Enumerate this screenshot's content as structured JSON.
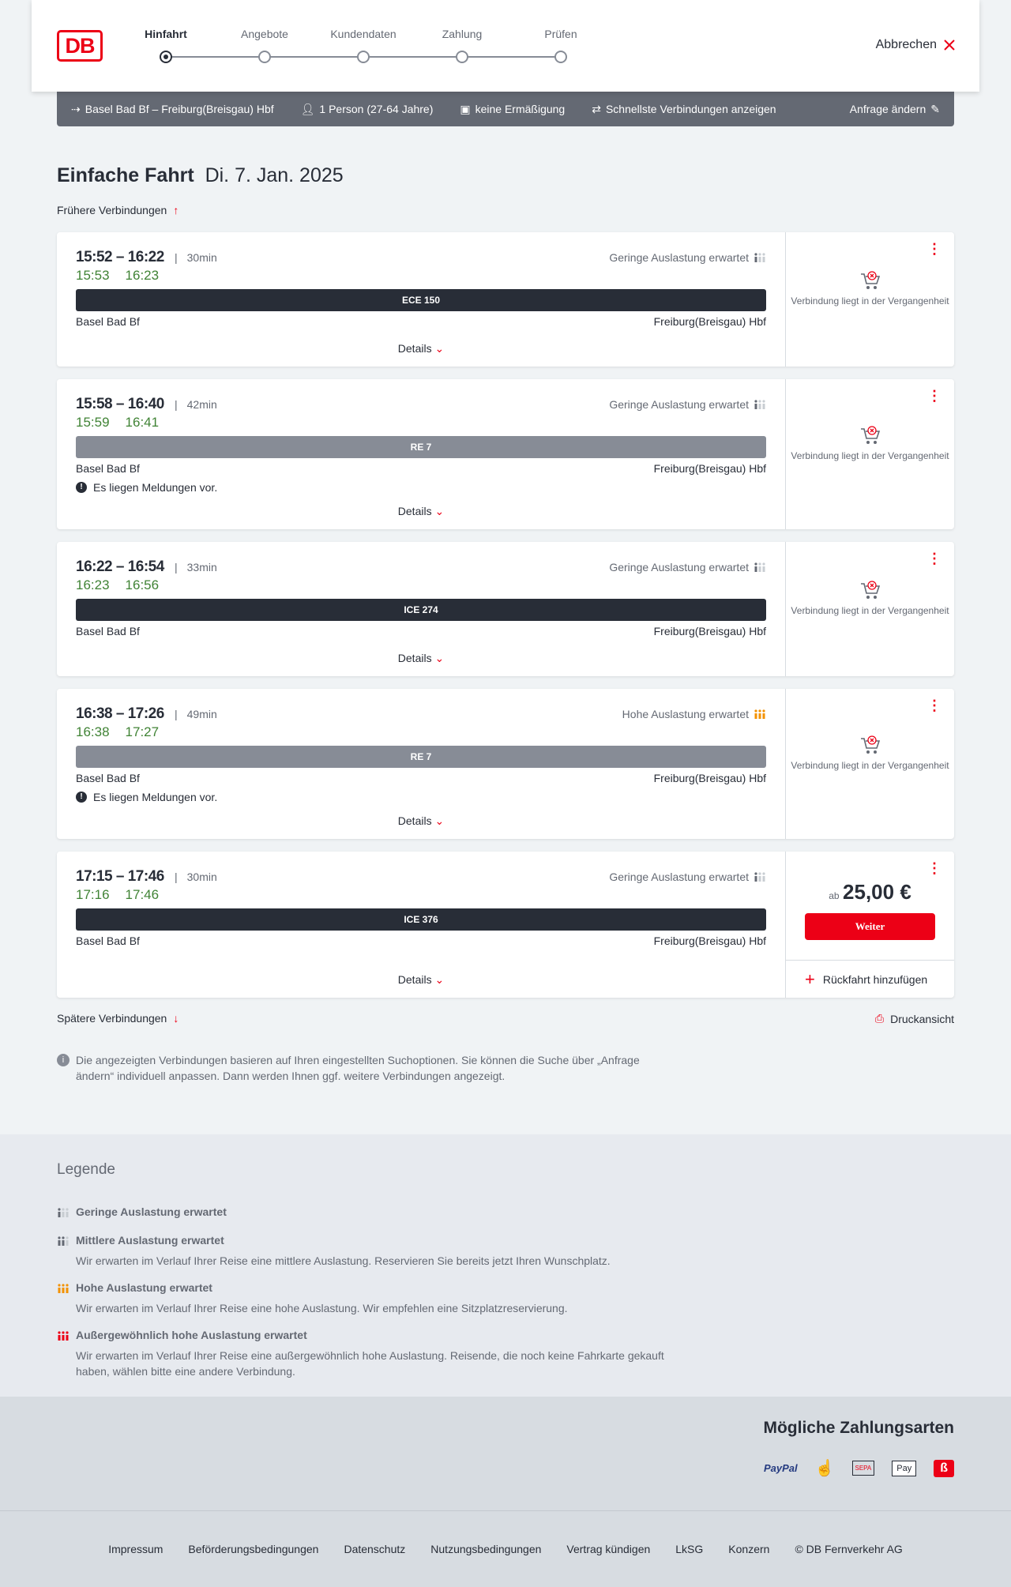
{
  "header": {
    "logo": "DB",
    "steps": [
      "Hinfahrt",
      "Angebote",
      "Kundendaten",
      "Zahlung",
      "Prüfen"
    ],
    "active_step": 0,
    "cancel_label": "Abbrechen"
  },
  "summary": {
    "route": "Basel Bad Bf – Freiburg(Breisgau) Hbf",
    "passengers": "1 Person (27-64 Jahre)",
    "discount": "keine Ermäßigung",
    "option": "Schnellste Verbindungen anzeigen",
    "change": "Anfrage ändern"
  },
  "page": {
    "title": "Einfache Fahrt",
    "date": "Di. 7. Jan. 2025",
    "earlier": "Frühere Verbindungen",
    "later": "Spätere Verbindungen",
    "print": "Druckansicht",
    "info": "Die angezeigten Verbindungen basieren auf Ihren eingestellten Suchoptionen. Sie können die Suche über „Anfrage ändern“ individuell anpassen. Dann werden Ihnen ggf. weitere Verbindungen angezeigt."
  },
  "colors": {
    "accent": "#ec0016",
    "realtime": "#408335",
    "ice": "#282d37",
    "regional": "#878c96",
    "high_load": "#f39200"
  },
  "connections": [
    {
      "times": "15:52 – 16:22",
      "duration": "30min",
      "rt_dep": "15:53",
      "rt_arr": "16:23",
      "load": "Geringe Auslastung erwartet",
      "load_level": "low",
      "train": "ECE 150",
      "train_type": "long",
      "from": "Basel Bad Bf",
      "to": "Freiburg(Breisgau) Hbf",
      "message": "",
      "details": "Details",
      "status": "Verbindung liegt in der Vergangenheit"
    },
    {
      "times": "15:58 – 16:40",
      "duration": "42min",
      "rt_dep": "15:59",
      "rt_arr": "16:41",
      "load": "Geringe Auslastung erwartet",
      "load_level": "low",
      "train": "RE 7",
      "train_type": "regional",
      "from": "Basel Bad Bf",
      "to": "Freiburg(Breisgau) Hbf",
      "message": "Es liegen Meldungen vor.",
      "details": "Details",
      "status": "Verbindung liegt in der Vergangenheit"
    },
    {
      "times": "16:22 – 16:54",
      "duration": "33min",
      "rt_dep": "16:23",
      "rt_arr": "16:56",
      "load": "Geringe Auslastung erwartet",
      "load_level": "low",
      "train": "ICE 274",
      "train_type": "long",
      "from": "Basel Bad Bf",
      "to": "Freiburg(Breisgau) Hbf",
      "message": "",
      "details": "Details",
      "status": "Verbindung liegt in der Vergangenheit"
    },
    {
      "times": "16:38 – 17:26",
      "duration": "49min",
      "rt_dep": "16:38",
      "rt_arr": "17:27",
      "load": "Hohe Auslastung erwartet",
      "load_level": "high",
      "train": "RE 7",
      "train_type": "regional",
      "from": "Basel Bad Bf",
      "to": "Freiburg(Breisgau) Hbf",
      "message": "Es liegen Meldungen vor.",
      "details": "Details",
      "status": "Verbindung liegt in der Vergangenheit"
    },
    {
      "times": "17:15 – 17:46",
      "duration": "30min",
      "rt_dep": "17:16",
      "rt_arr": "17:46",
      "load": "Geringe Auslastung erwartet",
      "load_level": "low",
      "train": "ICE 376",
      "train_type": "long",
      "from": "Basel Bad Bf",
      "to": "Freiburg(Breisgau) Hbf",
      "message": "",
      "details": "Details",
      "price_prefix": "ab",
      "price": "25,00 €",
      "button": "Weiter",
      "return": "Rückfahrt hinzufügen"
    }
  ],
  "legend": {
    "title": "Legende",
    "items": [
      {
        "label": "Geringe Auslastung erwartet",
        "text": "",
        "level": "low"
      },
      {
        "label": "Mittlere Auslastung erwartet",
        "text": "Wir erwarten im Verlauf Ihrer Reise eine mittlere Auslastung. Reservieren Sie bereits jetzt Ihren Wunschplatz.",
        "level": "medium"
      },
      {
        "label": "Hohe Auslastung erwartet",
        "text": "Wir erwarten im Verlauf Ihrer Reise eine hohe Auslastung. Wir empfehlen eine Sitzplatzreservierung.",
        "level": "high"
      },
      {
        "label": "Außergewöhnlich hohe Auslastung erwartet",
        "text": "Wir erwarten im Verlauf Ihrer Reise eine außergewöhnlich hohe Auslastung. Reisende, die noch keine Fahrkarte gekauft haben, wählen bitte eine andere Verbindung.",
        "level": "extreme"
      }
    ]
  },
  "payment": {
    "title": "Mögliche Zahlungsarten",
    "methods": [
      "PayPal",
      "credit-card",
      "SEPA",
      "Pay",
      "bahn-bonus"
    ]
  },
  "footer": {
    "links": [
      "Impressum",
      "Beförderungsbedingungen",
      "Datenschutz",
      "Nutzungsbedingungen",
      "Vertrag kündigen",
      "LkSG",
      "Konzern",
      "© DB Fernverkehr AG"
    ]
  }
}
